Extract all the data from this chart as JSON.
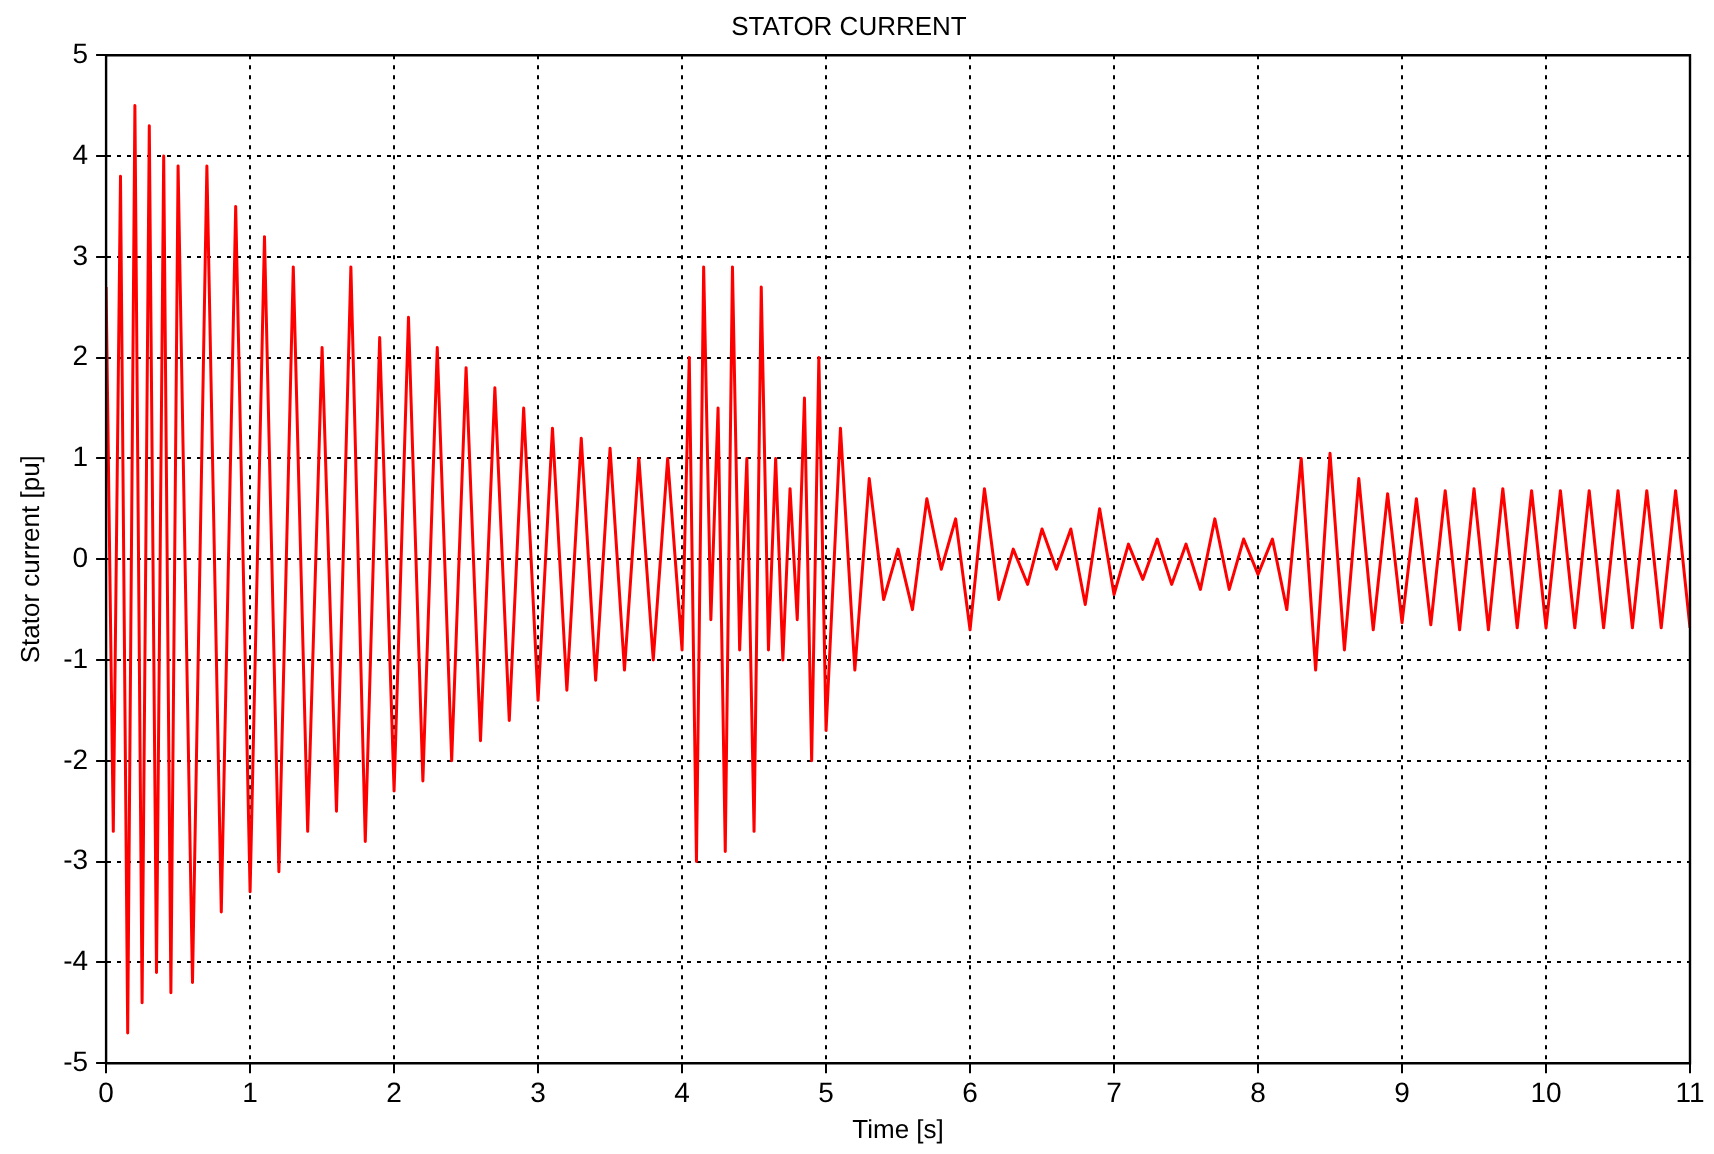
{
  "chart_data": {
    "type": "line",
    "title": "STATOR CURRENT",
    "xlabel": "Time [s]",
    "ylabel": "Stator current [pu]",
    "xlim": [
      0,
      11
    ],
    "xticks": [
      0,
      1,
      2,
      3,
      4,
      5,
      6,
      7,
      8,
      9,
      10,
      11
    ],
    "ylim": [
      -5,
      5
    ],
    "yticks": [
      -5,
      -4,
      -3,
      -2,
      -1,
      0,
      1,
      2,
      3,
      4,
      5
    ],
    "grid": true,
    "legend": false,
    "marker": "none",
    "line_style": "solid",
    "series": [
      {
        "color": "#ff0000",
        "x": [
          0,
          0.05,
          0.1,
          0.15,
          0.2,
          0.25,
          0.3,
          0.35,
          0.4,
          0.45,
          0.5,
          0.6,
          0.7,
          0.8,
          0.9,
          1.0,
          1.1,
          1.2,
          1.3,
          1.4,
          1.5,
          1.6,
          1.7,
          1.8,
          1.9,
          2.0,
          2.1,
          2.2,
          2.3,
          2.4,
          2.5,
          2.6,
          2.7,
          2.8,
          2.9,
          3.0,
          3.1,
          3.2,
          3.3,
          3.4,
          3.5,
          3.6,
          3.7,
          3.8,
          3.9,
          4.0,
          4.05,
          4.1,
          4.15,
          4.2,
          4.25,
          4.3,
          4.35,
          4.4,
          4.45,
          4.5,
          4.55,
          4.6,
          4.65,
          4.7,
          4.75,
          4.8,
          4.85,
          4.9,
          4.95,
          5.0,
          5.1,
          5.2,
          5.3,
          5.4,
          5.5,
          5.6,
          5.7,
          5.8,
          5.9,
          6.0,
          6.1,
          6.2,
          6.3,
          6.4,
          6.5,
          6.6,
          6.7,
          6.8,
          6.9,
          7.0,
          7.1,
          7.2,
          7.3,
          7.4,
          7.5,
          7.6,
          7.7,
          7.8,
          7.9,
          8.0,
          8.1,
          8.2,
          8.3,
          8.4,
          8.5,
          8.6,
          8.7,
          8.8,
          8.9,
          9.0,
          9.1,
          9.2,
          9.3,
          9.4,
          9.5,
          9.6,
          9.7,
          9.8,
          9.9,
          10.0,
          10.1,
          10.2,
          10.3,
          10.4,
          10.5,
          10.6,
          10.7,
          10.8,
          10.9,
          11.0
        ],
        "values": [
          2.7,
          -2.7,
          3.8,
          -4.7,
          4.5,
          -4.4,
          4.3,
          -4.1,
          4.0,
          -4.3,
          3.9,
          -4.2,
          3.9,
          -3.5,
          3.5,
          -3.3,
          3.2,
          -3.1,
          2.9,
          -2.7,
          2.1,
          -2.5,
          2.9,
          -2.8,
          2.2,
          -2.3,
          2.4,
          -2.2,
          2.1,
          -2.0,
          1.9,
          -1.8,
          1.7,
          -1.6,
          1.5,
          -1.4,
          1.3,
          -1.3,
          1.2,
          -1.2,
          1.1,
          -1.1,
          1.0,
          -1.0,
          1.0,
          -0.9,
          2.0,
          -3.0,
          2.9,
          -0.6,
          1.5,
          -2.9,
          2.9,
          -0.9,
          1.0,
          -2.7,
          2.7,
          -0.9,
          1.0,
          -1.0,
          0.7,
          -0.6,
          1.6,
          -2.0,
          2.0,
          -1.7,
          1.3,
          -1.1,
          0.8,
          -0.4,
          0.1,
          -0.5,
          0.6,
          -0.1,
          0.4,
          -0.7,
          0.7,
          -0.4,
          0.1,
          -0.25,
          0.3,
          -0.1,
          0.3,
          -0.45,
          0.5,
          -0.35,
          0.15,
          -0.2,
          0.2,
          -0.25,
          0.15,
          -0.3,
          0.4,
          -0.3,
          0.2,
          -0.15,
          0.2,
          -0.5,
          1.0,
          -1.1,
          1.05,
          -0.9,
          0.8,
          -0.7,
          0.65,
          -0.63,
          0.6,
          -0.65,
          0.68,
          -0.7,
          0.7,
          -0.7,
          0.7,
          -0.68,
          0.68,
          -0.68,
          0.68,
          -0.68,
          0.68,
          -0.68,
          0.68,
          -0.68,
          0.68,
          -0.68,
          0.68,
          -0.68
        ]
      }
    ]
  }
}
